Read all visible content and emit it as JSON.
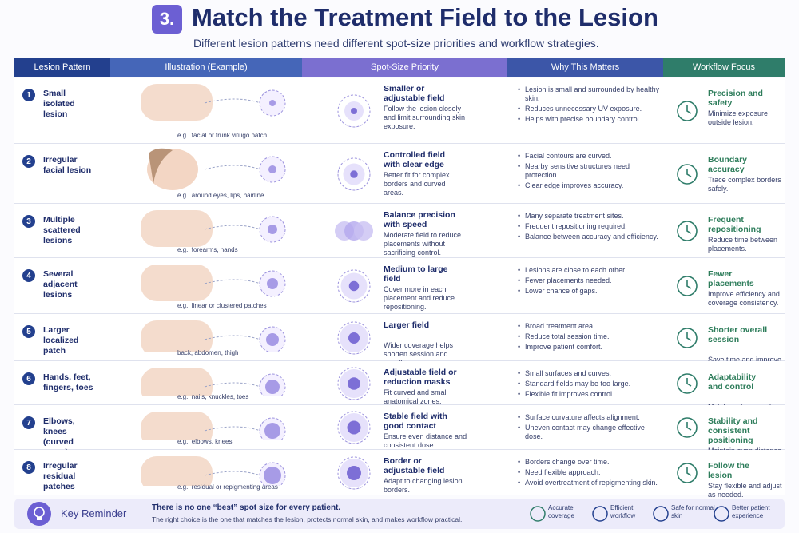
{
  "header": {
    "number": "3.",
    "title": "Match the Treatment Field to the Lesion",
    "subtitle": "Different lesion patterns need different spot-size priorities and workflow strategies."
  },
  "table": {
    "columns": [
      "Lesion Pattern",
      "Illustration (Example)",
      "Spot-Size Priority",
      "Why This Matters",
      "Workflow Focus"
    ],
    "rows": [
      {
        "number": "1",
        "pattern": "Small isolated lesion",
        "caption": "e.g., facial or trunk vitiligo patch",
        "priority": "Smaller or adjustable field",
        "priority_desc": "Follow the lesion closely and limit surrounding skin exposure.",
        "why": [
          "Lesion is small and surrounded by healthy skin.",
          "Reduces unnecessary UV exposure.",
          "Helps with precise boundary control."
        ],
        "focus": "Precision and safety",
        "focus_desc": "Minimize exposure outside lesion."
      },
      {
        "number": "2",
        "pattern": "Irregular facial lesion",
        "caption": "e.g., around eyes, lips, hairline",
        "priority": "Controlled field with clear edge",
        "priority_desc": "Better fit for complex borders and curved areas.",
        "why": [
          "Facial contours are curved.",
          "Nearby sensitive structures need protection.",
          "Clear edge improves accuracy."
        ],
        "focus": "Boundary accuracy",
        "focus_desc": "Trace complex borders safely."
      },
      {
        "number": "3",
        "pattern": "Multiple scattered lesions",
        "caption": "e.g., forearms, hands",
        "priority": "Balance precision with speed",
        "priority_desc": "Moderate field to reduce placements without sacrificing control.",
        "why": [
          "Many separate treatment sites.",
          "Frequent repositioning required.",
          "Balance between accuracy and efficiency."
        ],
        "focus": "Frequent repositioning",
        "focus_desc": "Reduce time between placements."
      },
      {
        "number": "4",
        "pattern": "Several adjacent lesions",
        "caption": "e.g., linear or clustered patches",
        "priority": "Medium to large field",
        "priority_desc": "Cover more in each placement and reduce repositioning.",
        "why": [
          "Lesions are close to each other.",
          "Fewer placements needed.",
          "Lower chance of gaps."
        ],
        "focus": "Fewer placements",
        "focus_desc": "Improve efficiency and coverage consistency."
      },
      {
        "number": "5",
        "pattern": "Larger localized patch",
        "caption": "back, abdomen, thigh",
        "priority": "Larger field",
        "priority_desc": "Wider coverage helps shorten session and workflow.",
        "why": [
          "Broad treatment area.",
          "Reduce total session time.",
          "Improve patient comfort."
        ],
        "focus": "Shorter overall session",
        "focus_desc": "Save time and improve patient experience."
      },
      {
        "number": "6",
        "pattern": "Hands, feet, fingers, toes",
        "caption": "e.g., nails, knuckles, toes",
        "priority": "Adjustable field or reduction masks",
        "priority_desc": "Fit curved and small anatomical zones.",
        "why": [
          "Small surfaces and curves.",
          "Standard fields may be too large.",
          "Flexible fit improves control."
        ],
        "focus": "Adaptability and control",
        "focus_desc": "Match contours and protect normal skin."
      },
      {
        "number": "7",
        "pattern": "Elbows, knees (curved areas)",
        "caption": "e.g., elbows, knees",
        "priority": "Stable field with good contact",
        "priority_desc": "Ensure even distance and consistent dose.",
        "why": [
          "Surface curvature affects alignment.",
          "Uneven contact may change effective dose."
        ],
        "focus": "Stability and consistent positioning",
        "focus_desc": "Maintain even distance and alignment."
      },
      {
        "number": "8",
        "pattern": "Irregular residual patches",
        "caption": "e.g., residual or repigmenting areas",
        "priority": "Border or adjustable field",
        "priority_desc": "Adapt to changing lesion borders.",
        "why": [
          "Borders change over time.",
          "Need flexible approach.",
          "Avoid overtreatment of repigmenting skin."
        ],
        "focus": "Follow the lesion",
        "focus_desc": "Stay flexible and adjust as needed."
      }
    ]
  },
  "footer": {
    "title": "Key Reminder",
    "line1": "There is no one “best” spot size for every patient.",
    "line2": "The right choice is the one that matches the lesion, protects normal skin, and makes workflow practical.",
    "badges": [
      "Accurate coverage",
      "Efficient workflow",
      "Safe for normal skin",
      "Better patient experience"
    ]
  }
}
